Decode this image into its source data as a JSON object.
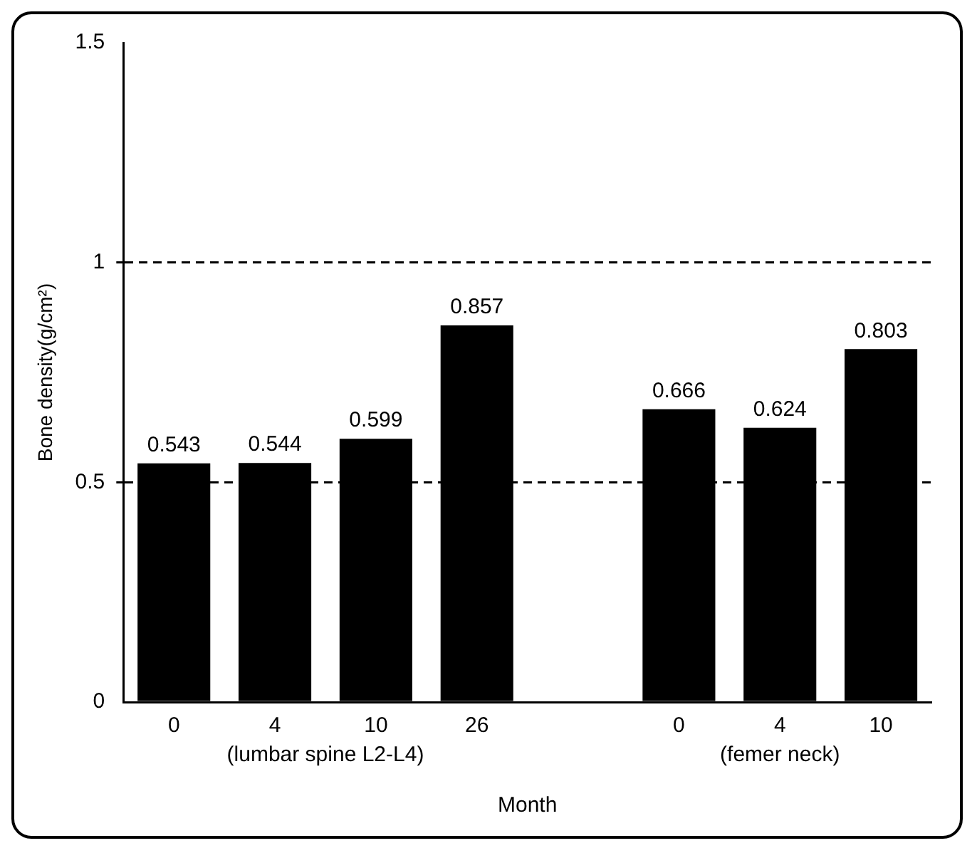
{
  "chart_data": {
    "type": "bar",
    "xlabel": "Month",
    "ylabel": "Bone density(g/cm²)",
    "categories": [
      "0",
      "4",
      "10",
      "26",
      null,
      "0",
      "4",
      "10"
    ],
    "values": [
      0.543,
      0.544,
      0.599,
      0.857,
      null,
      0.666,
      0.624,
      0.803
    ],
    "color": "#000000",
    "ylim": [
      0,
      1.5
    ],
    "yticks": [
      0,
      0.5,
      1,
      1.5
    ],
    "grid": "y",
    "line_style": "dashed",
    "data_labels": true,
    "legend": false,
    "annotations": [
      "(lumbar spine L2-L4)",
      "(femer neck)"
    ]
  }
}
